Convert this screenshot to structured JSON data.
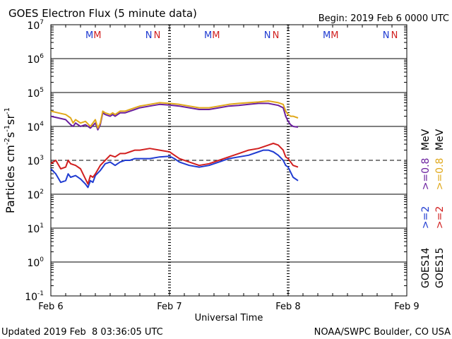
{
  "chart_data": {
    "type": "line",
    "title": "GOES Electron Flux (5 minute data)",
    "begin_label": "Begin: 2019 Feb 6 0000 UTC",
    "xlabel": "Universal Time",
    "ylabel": "Particles cm",
    "ylabel_sup1": "-2",
    "ylabel_mid1": "s",
    "ylabel_sup2": "-1",
    "ylabel_mid2": "sr",
    "ylabel_sup3": "-1",
    "footer_left": "Updated 2019 Feb  8 03:36:05 UTC",
    "footer_right": "NOAA/SWPC Boulder, CO USA",
    "x_range_hours": [
      0,
      72
    ],
    "y_log_range": [
      -1,
      7
    ],
    "x_ticks": [
      {
        "hour": 0,
        "label": "Feb 6"
      },
      {
        "hour": 24,
        "label": "Feb 7"
      },
      {
        "hour": 48,
        "label": "Feb 8"
      },
      {
        "hour": 72,
        "label": "Feb 9"
      }
    ],
    "y_ticks": [
      {
        "exp": 7,
        "base": "10",
        "sup": "7"
      },
      {
        "exp": 6,
        "base": "10",
        "sup": "6"
      },
      {
        "exp": 5,
        "base": "10",
        "sup": "5"
      },
      {
        "exp": 4,
        "base": "10",
        "sup": "4"
      },
      {
        "exp": 3,
        "base": "10",
        "sup": "3"
      },
      {
        "exp": 2,
        "base": "10",
        "sup": "2"
      },
      {
        "exp": 1,
        "base": "10",
        "sup": "1"
      },
      {
        "exp": 0,
        "base": "10",
        "sup": "0"
      },
      {
        "exp": -1,
        "base": "10",
        "sup": "-1"
      }
    ],
    "threshold_exp": 3,
    "markers": [
      {
        "hour": 7.8,
        "label": "M",
        "color": "#1f3bd1"
      },
      {
        "hour": 9.4,
        "label": "M",
        "color": "#d11f1f"
      },
      {
        "hour": 19.8,
        "label": "N",
        "color": "#1f3bd1"
      },
      {
        "hour": 21.5,
        "label": "N",
        "color": "#d11f1f"
      },
      {
        "hour": 31.8,
        "label": "M",
        "color": "#1f3bd1"
      },
      {
        "hour": 33.4,
        "label": "M",
        "color": "#d11f1f"
      },
      {
        "hour": 43.8,
        "label": "N",
        "color": "#1f3bd1"
      },
      {
        "hour": 45.5,
        "label": "N",
        "color": "#d11f1f"
      },
      {
        "hour": 55.8,
        "label": "M",
        "color": "#1f3bd1"
      },
      {
        "hour": 57.4,
        "label": "M",
        "color": "#d11f1f"
      },
      {
        "hour": 67.8,
        "label": "N",
        "color": "#1f3bd1"
      },
      {
        "hour": 69.5,
        "label": "N",
        "color": "#d11f1f"
      }
    ],
    "legend": {
      "col1_sat": "GOES14",
      "col2_sat": "GOES15",
      "col1_e2": ">=2",
      "col2_e2": ">=2",
      "col1_e08": ">=0.8",
      "col2_e08": ">=0.8",
      "unit1": "MeV",
      "unit2": "MeV"
    },
    "series": [
      {
        "name": "GOES14 >=0.8 MeV",
        "color": "#6a1f9e",
        "x": [
          0,
          1.5,
          3,
          4,
          4.5,
          5,
          6,
          7,
          8,
          9,
          9.5,
          10,
          10.5,
          11,
          12,
          12.5,
          13,
          14,
          15,
          16,
          17,
          18,
          20,
          22,
          24,
          26,
          28,
          30,
          32,
          34,
          36,
          38,
          40,
          42,
          44,
          46,
          47,
          47.5,
          48,
          48.5,
          49,
          50
        ],
        "y_log": [
          4.3,
          4.25,
          4.2,
          4.05,
          4.0,
          4.1,
          4.0,
          4.05,
          3.95,
          4.1,
          3.9,
          4.05,
          4.4,
          4.35,
          4.3,
          4.35,
          4.3,
          4.4,
          4.4,
          4.45,
          4.5,
          4.55,
          4.6,
          4.65,
          4.63,
          4.6,
          4.55,
          4.5,
          4.5,
          4.55,
          4.6,
          4.62,
          4.65,
          4.68,
          4.68,
          4.62,
          4.55,
          4.3,
          4.15,
          4.05,
          4.0,
          3.98
        ]
      },
      {
        "name": "GOES15 >=0.8 MeV",
        "color": "#e0a81a",
        "x": [
          0,
          1.5,
          3,
          4,
          4.5,
          5,
          6,
          7,
          8,
          9,
          9.5,
          10,
          10.5,
          11,
          12,
          12.5,
          13,
          14,
          15,
          16,
          17,
          18,
          20,
          22,
          24,
          26,
          28,
          30,
          32,
          34,
          36,
          38,
          40,
          42,
          44,
          46,
          47,
          47.5,
          48,
          48.5,
          49,
          50
        ],
        "y_log": [
          4.45,
          4.4,
          4.35,
          4.25,
          4.1,
          4.2,
          4.1,
          4.15,
          4.0,
          4.2,
          3.95,
          4.1,
          4.45,
          4.4,
          4.35,
          4.4,
          4.35,
          4.45,
          4.45,
          4.5,
          4.55,
          4.6,
          4.65,
          4.7,
          4.68,
          4.65,
          4.6,
          4.55,
          4.55,
          4.6,
          4.65,
          4.68,
          4.7,
          4.72,
          4.75,
          4.7,
          4.65,
          4.45,
          4.35,
          4.3,
          4.3,
          4.25
        ]
      },
      {
        "name": "GOES14 >=2 MeV",
        "color": "#1f3bd1",
        "x": [
          0,
          1,
          2,
          3,
          3.5,
          4,
          5,
          6,
          7,
          7.5,
          8,
          8.5,
          9,
          10,
          11,
          12,
          13,
          14,
          15,
          16,
          17,
          18,
          20,
          22,
          24,
          25,
          26,
          28,
          30,
          32,
          34,
          36,
          38,
          40,
          42,
          43,
          44,
          45,
          46,
          47,
          47.5,
          48,
          48.5,
          49,
          50
        ],
        "y_log": [
          2.75,
          2.6,
          2.35,
          2.4,
          2.6,
          2.5,
          2.55,
          2.45,
          2.3,
          2.2,
          2.4,
          2.35,
          2.55,
          2.7,
          2.9,
          2.95,
          2.85,
          2.95,
          3.0,
          3.0,
          3.05,
          3.05,
          3.05,
          3.1,
          3.12,
          3.05,
          2.95,
          2.85,
          2.8,
          2.85,
          2.95,
          3.05,
          3.1,
          3.15,
          3.25,
          3.3,
          3.3,
          3.25,
          3.15,
          3.0,
          2.85,
          2.8,
          2.65,
          2.5,
          2.4
        ]
      },
      {
        "name": "GOES15 >=2 MeV",
        "color": "#d11f1f",
        "x": [
          0,
          1,
          2,
          3,
          3.5,
          4,
          5,
          6,
          7,
          7.5,
          8,
          8.5,
          9,
          10,
          11,
          12,
          13,
          14,
          15,
          16,
          17,
          18,
          20,
          22,
          24,
          25,
          26,
          28,
          30,
          32,
          34,
          36,
          38,
          40,
          42,
          43,
          44,
          45,
          46,
          47,
          47.5,
          48,
          48.5,
          49,
          50
        ],
        "y_log": [
          2.9,
          3.0,
          2.75,
          2.8,
          3.0,
          2.9,
          2.85,
          2.75,
          2.45,
          2.3,
          2.55,
          2.5,
          2.6,
          2.85,
          3.0,
          3.15,
          3.1,
          3.2,
          3.2,
          3.25,
          3.3,
          3.3,
          3.35,
          3.3,
          3.25,
          3.15,
          3.05,
          2.95,
          2.85,
          2.9,
          3.0,
          3.1,
          3.2,
          3.3,
          3.35,
          3.4,
          3.45,
          3.5,
          3.45,
          3.3,
          3.1,
          3.05,
          2.95,
          2.85,
          2.8
        ]
      }
    ]
  }
}
